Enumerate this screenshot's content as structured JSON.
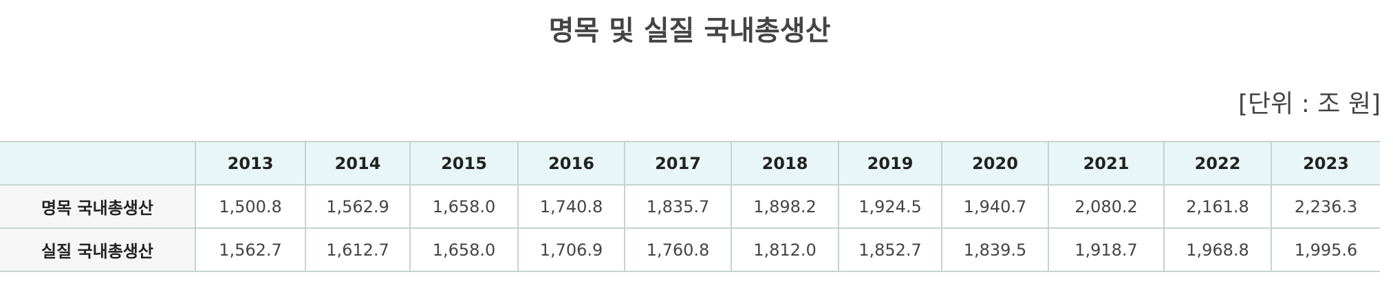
{
  "title": "명목 및 실질 국내총생산",
  "unit": "[단위 : 조 원]",
  "table": {
    "columns": [
      "2013",
      "2014",
      "2015",
      "2016",
      "2017",
      "2018",
      "2019",
      "2020",
      "2021",
      "2022",
      "2023"
    ],
    "rows": [
      {
        "label": "명목 국내총생산",
        "values": [
          "1,500.8",
          "1,562.9",
          "1,658.0",
          "1,740.8",
          "1,835.7",
          "1,898.2",
          "1,924.5",
          "1,940.7",
          "2,080.2",
          "2,161.8",
          "2,236.3"
        ]
      },
      {
        "label": "실질 국내총생산",
        "values": [
          "1,562.7",
          "1,612.7",
          "1,658.0",
          "1,706.9",
          "1,760.8",
          "1,812.0",
          "1,852.7",
          "1,839.5",
          "1,918.7",
          "1,968.8",
          "1,995.6"
        ]
      }
    ]
  }
}
